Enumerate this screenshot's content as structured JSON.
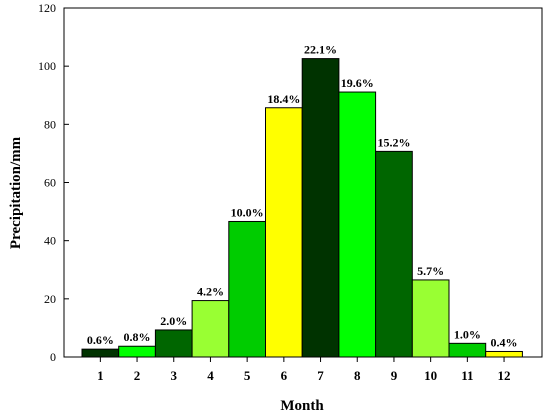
{
  "chart_data": {
    "type": "bar",
    "xlabel": "Month",
    "ylabel": "Precipitation/mm",
    "ylim": [
      0,
      120
    ],
    "yticks": [
      0,
      20,
      40,
      60,
      80,
      100,
      120
    ],
    "categories": [
      "1",
      "2",
      "3",
      "4",
      "5",
      "6",
      "7",
      "8",
      "9",
      "10",
      "11",
      "12"
    ],
    "values": [
      2.7,
      3.7,
      9.3,
      19.4,
      46.6,
      85.7,
      102.6,
      91.1,
      70.7,
      26.5,
      4.7,
      1.9
    ],
    "data_labels": [
      "0.6%",
      "0.8%",
      "2.0%",
      "4.2%",
      "10.0%",
      "18.4%",
      "22.1%",
      "19.6%",
      "15.2%",
      "5.7%",
      "1.0%",
      "0.4%"
    ],
    "colors": [
      "#003300",
      "#00ff00",
      "#006600",
      "#99ff33",
      "#00cc00",
      "#ffff00",
      "#003300",
      "#00ff00",
      "#006600",
      "#99ff33",
      "#00cc00",
      "#ffff00"
    ],
    "grid": false,
    "legend": "none"
  }
}
